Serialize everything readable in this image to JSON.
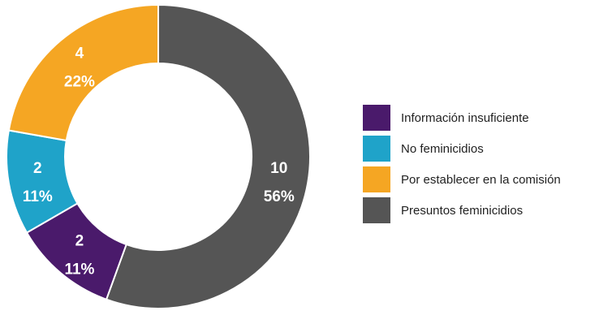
{
  "chart_data": {
    "type": "pie",
    "style": "donut",
    "legend_position": "right",
    "slices": [
      {
        "label": "Información insuficiente",
        "value": 2,
        "percent_label": "11%",
        "color": "#4a1a6b"
      },
      {
        "label": "No feminicidios",
        "value": 2,
        "percent_label": "11%",
        "color": "#1fa3c9"
      },
      {
        "label": "Por establecer en la comisión",
        "value": 4,
        "percent_label": "22%",
        "color": "#f5a623"
      },
      {
        "label": "Presuntos feminicidios",
        "value": 10,
        "percent_label": "56%",
        "color": "#555555"
      }
    ]
  }
}
